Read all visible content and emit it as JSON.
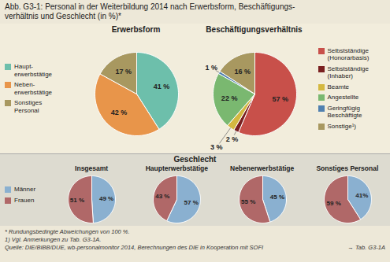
{
  "title": "Abb. G3-1: Personal in der Weiterbildung 2014 nach Erwerbsform, Beschäftigungs-\nverhältnis und Geschlecht (in %)*",
  "annotations": [
    "* Rundungsbedingte Abweichungen von 100 %.",
    "1) Vgl. Anmerkungen zu Tab. G3-1A.",
    "Quelle: DIE/BIBB/DUE, wb-personalmonitor 2014, Berechnungen des DIE in Kooperation mit SOFI",
    "→ Tab. G3-1A"
  ],
  "chart_data": [
    {
      "type": "pie",
      "title": "Erwerbsform",
      "categories": [
        "Haupt-\nerwerbstätige",
        "Neben-\nerwerbstätige",
        "Sonstiges\nPersonal"
      ],
      "values": [
        41,
        42,
        17
      ],
      "value_labels": [
        "41 %",
        "42 %",
        "17 %"
      ],
      "colors": [
        "#6dbfab",
        "#e8954a",
        "#a89860"
      ],
      "data_labels": true,
      "legend": "left"
    },
    {
      "type": "pie",
      "title": "Beschäftigungsverhältnis",
      "categories": [
        "Selbstständige\n(Honorarbasis)",
        "Selbstständige\n(Inhaber)",
        "Beamte",
        "Angestellte",
        "Geringfügig\nBeschäftigte",
        "Sonstige¹)"
      ],
      "values": [
        57,
        2,
        3,
        22,
        1,
        16
      ],
      "value_labels": [
        "57 %",
        "2 %",
        "3 %",
        "22 %",
        "1 %",
        "16 %"
      ],
      "colors": [
        "#c8504a",
        "#7a2020",
        "#d4b840",
        "#7ab870",
        "#5080b0",
        "#a89860"
      ],
      "data_labels": true,
      "legend": "right"
    },
    {
      "type": "pie",
      "title": "Geschlecht",
      "categories": [
        "Männer",
        "Frauen"
      ],
      "colors": [
        "#8ab0d0",
        "#b06868"
      ],
      "series": [
        {
          "name": "Insgesamt",
          "values": [
            49,
            51
          ],
          "value_labels": [
            "49 %",
            "51 %"
          ]
        },
        {
          "name": "Haupterwerbstätige",
          "values": [
            57,
            43
          ],
          "value_labels": [
            "57 %",
            "43 %"
          ]
        },
        {
          "name": "Nebenerwerbstätige",
          "values": [
            45,
            55
          ],
          "value_labels": [
            "45 %",
            "55 %"
          ]
        },
        {
          "name": "Sonstiges Personal",
          "values": [
            41,
            59
          ],
          "value_labels": [
            "41%",
            "59 %"
          ]
        }
      ],
      "data_labels": true,
      "legend": "left"
    }
  ]
}
